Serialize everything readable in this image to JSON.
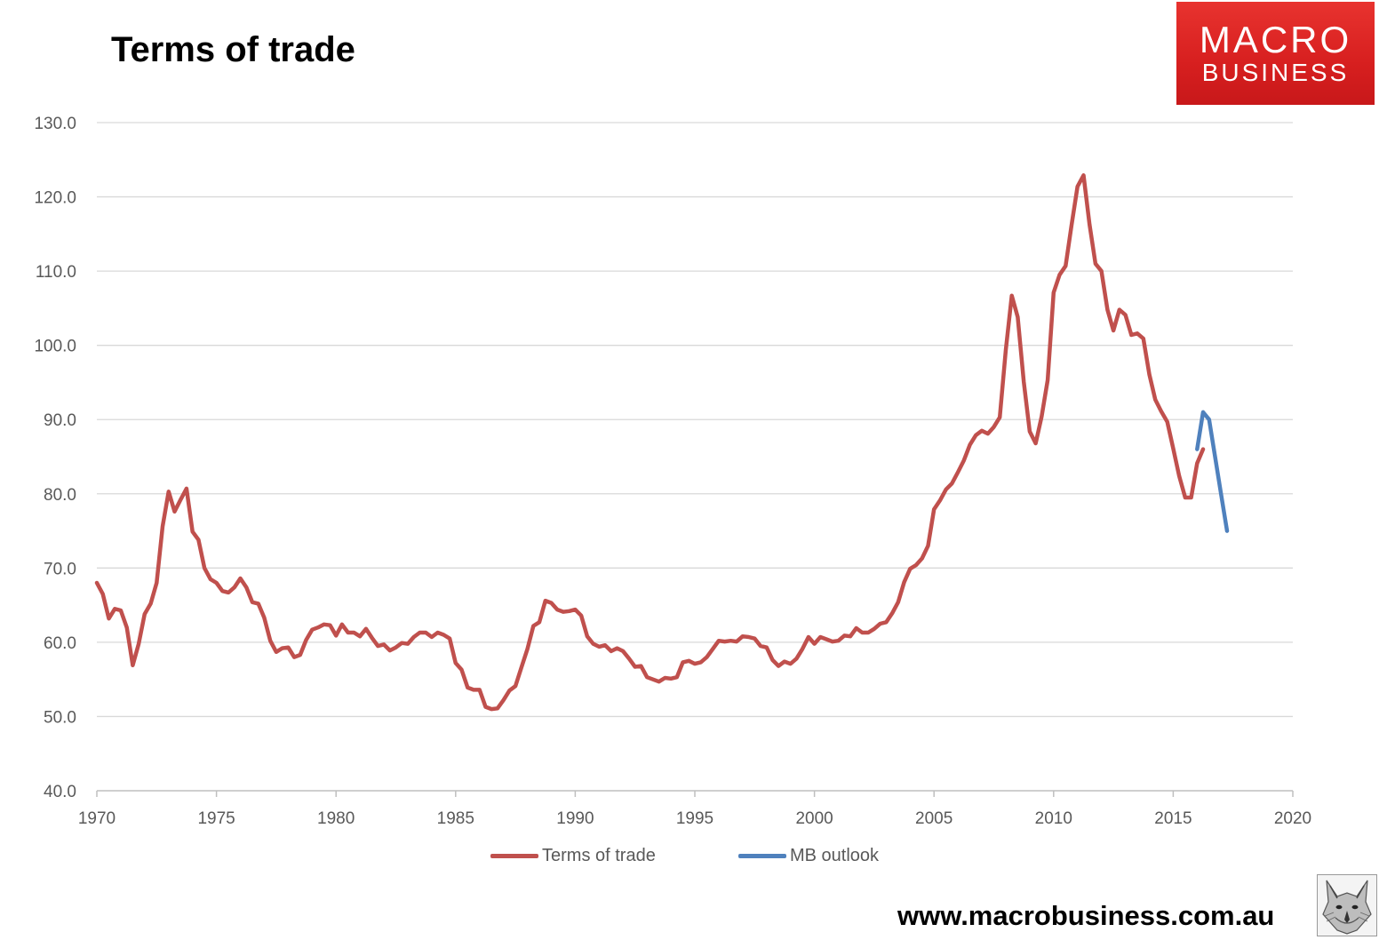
{
  "chart_data": {
    "type": "line",
    "title": "Terms of trade",
    "xlim": [
      1970,
      2020
    ],
    "ylim": [
      40,
      130
    ],
    "x_ticks": [
      1970,
      1975,
      1980,
      1985,
      1990,
      1995,
      2000,
      2005,
      2010,
      2015,
      2020
    ],
    "y_ticks": [
      40,
      50,
      60,
      70,
      80,
      90,
      100,
      110,
      120,
      130
    ],
    "y_tick_labels": [
      "40.0",
      "50.0",
      "60.0",
      "70.0",
      "80.0",
      "90.0",
      "100.0",
      "110.0",
      "120.0",
      "130.0"
    ],
    "grid": true,
    "legend_position": "bottom",
    "series": [
      {
        "name": "Terms of trade",
        "color": "#c0504d",
        "x": [
          1970.0,
          1970.25,
          1970.5,
          1970.75,
          1971.0,
          1971.25,
          1971.5,
          1971.75,
          1972.0,
          1972.25,
          1972.5,
          1972.75,
          1973.0,
          1973.25,
          1973.5,
          1973.75,
          1974.0,
          1974.25,
          1974.5,
          1974.75,
          1975.0,
          1975.25,
          1975.5,
          1975.75,
          1976.0,
          1976.25,
          1976.5,
          1976.75,
          1977.0,
          1977.25,
          1977.5,
          1977.75,
          1978.0,
          1978.25,
          1978.5,
          1978.75,
          1979.0,
          1979.25,
          1979.5,
          1979.75,
          1980.0,
          1980.25,
          1980.5,
          1980.75,
          1981.0,
          1981.25,
          1981.5,
          1981.75,
          1982.0,
          1982.25,
          1982.5,
          1982.75,
          1983.0,
          1983.25,
          1983.5,
          1983.75,
          1984.0,
          1984.25,
          1984.5,
          1984.75,
          1985.0,
          1985.25,
          1985.5,
          1985.75,
          1986.0,
          1986.25,
          1986.5,
          1986.75,
          1987.0,
          1987.25,
          1987.5,
          1987.75,
          1988.0,
          1988.25,
          1988.5,
          1988.75,
          1989.0,
          1989.25,
          1989.5,
          1989.75,
          1990.0,
          1990.25,
          1990.5,
          1990.75,
          1991.0,
          1991.25,
          1991.5,
          1991.75,
          1992.0,
          1992.25,
          1992.5,
          1992.75,
          1993.0,
          1993.25,
          1993.5,
          1993.75,
          1994.0,
          1994.25,
          1994.5,
          1994.75,
          1995.0,
          1995.25,
          1995.5,
          1995.75,
          1996.0,
          1996.25,
          1996.5,
          1996.75,
          1997.0,
          1997.25,
          1997.5,
          1997.75,
          1998.0,
          1998.25,
          1998.5,
          1998.75,
          1999.0,
          1999.25,
          1999.5,
          1999.75,
          2000.0,
          2000.25,
          2000.5,
          2000.75,
          2001.0,
          2001.25,
          2001.5,
          2001.75,
          2002.0,
          2002.25,
          2002.5,
          2002.75,
          2003.0,
          2003.25,
          2003.5,
          2003.75,
          2004.0,
          2004.25,
          2004.5,
          2004.75,
          2005.0,
          2005.25,
          2005.5,
          2005.75,
          2006.0,
          2006.25,
          2006.5,
          2006.75,
          2007.0,
          2007.25,
          2007.5,
          2007.75,
          2008.0,
          2008.25,
          2008.5,
          2008.75,
          2009.0,
          2009.25,
          2009.5,
          2009.75,
          2010.0,
          2010.25,
          2010.5,
          2010.75,
          2011.0,
          2011.25,
          2011.5,
          2011.75,
          2012.0,
          2012.25,
          2012.5,
          2012.75,
          2013.0,
          2013.25,
          2013.5,
          2013.75,
          2014.0,
          2014.25,
          2014.5,
          2014.75,
          2015.0,
          2015.25,
          2015.5,
          2015.75,
          2016.0,
          2016.25
        ],
        "y": [
          68.0,
          66.5,
          63.2,
          64.5,
          64.3,
          62.0,
          56.9,
          59.8,
          63.8,
          65.2,
          68.0,
          75.6,
          80.3,
          77.6,
          79.2,
          80.7,
          74.9,
          73.8,
          70.0,
          68.5,
          68.0,
          66.9,
          66.7,
          67.4,
          68.6,
          67.4,
          65.4,
          65.2,
          63.3,
          60.2,
          58.7,
          59.2,
          59.3,
          58.0,
          58.3,
          60.3,
          61.7,
          62.0,
          62.4,
          62.3,
          60.9,
          62.4,
          61.3,
          61.3,
          60.8,
          61.8,
          60.6,
          59.5,
          59.7,
          58.9,
          59.3,
          59.9,
          59.8,
          60.7,
          61.3,
          61.3,
          60.7,
          61.3,
          61.0,
          60.5,
          57.2,
          56.3,
          53.9,
          53.6,
          53.6,
          51.3,
          51.0,
          51.1,
          52.2,
          53.5,
          54.1,
          56.6,
          59.1,
          62.2,
          62.7,
          65.6,
          65.3,
          64.4,
          64.1,
          64.2,
          64.4,
          63.6,
          60.8,
          59.8,
          59.4,
          59.6,
          58.8,
          59.2,
          58.8,
          57.8,
          56.7,
          56.8,
          55.3,
          55.0,
          54.7,
          55.2,
          55.1,
          55.3,
          57.3,
          57.5,
          57.1,
          57.3,
          58.0,
          59.1,
          60.2,
          60.1,
          60.2,
          60.1,
          60.8,
          60.7,
          60.5,
          59.5,
          59.3,
          57.6,
          56.8,
          57.4,
          57.1,
          57.8,
          59.1,
          60.7,
          59.8,
          60.7,
          60.4,
          60.1,
          60.2,
          60.9,
          60.8,
          61.9,
          61.3,
          61.3,
          61.8,
          62.5,
          62.7,
          63.9,
          65.4,
          68.1,
          69.9,
          70.4,
          71.3,
          73.0,
          77.9,
          79.1,
          80.6,
          81.4,
          82.9,
          84.5,
          86.6,
          87.9,
          88.5,
          88.1,
          89.0,
          90.3,
          99.4,
          106.7,
          103.8,
          95.1,
          88.4,
          86.8,
          90.4,
          95.3,
          107.1,
          109.5,
          110.7,
          116.2,
          121.4,
          122.9,
          116.3,
          111.0,
          110.0,
          104.8,
          102.0,
          104.8,
          104.1,
          101.4,
          101.6,
          100.9,
          96.1,
          92.7,
          91.1,
          89.7,
          86.1,
          82.4,
          79.5,
          79.5,
          84.1,
          86.0
        ]
      },
      {
        "name": "MB outlook",
        "color": "#4f81bd",
        "x": [
          2016.0,
          2016.25,
          2016.5,
          2016.75,
          2017.0,
          2017.25
        ],
        "y": [
          86.0,
          91.0,
          90.0,
          85.0,
          80.0,
          75.0
        ]
      }
    ]
  },
  "branding": {
    "logo_line1": "MACRO",
    "logo_line2": "BUSINESS",
    "footer_url": "www.macrobusiness.com.au"
  }
}
